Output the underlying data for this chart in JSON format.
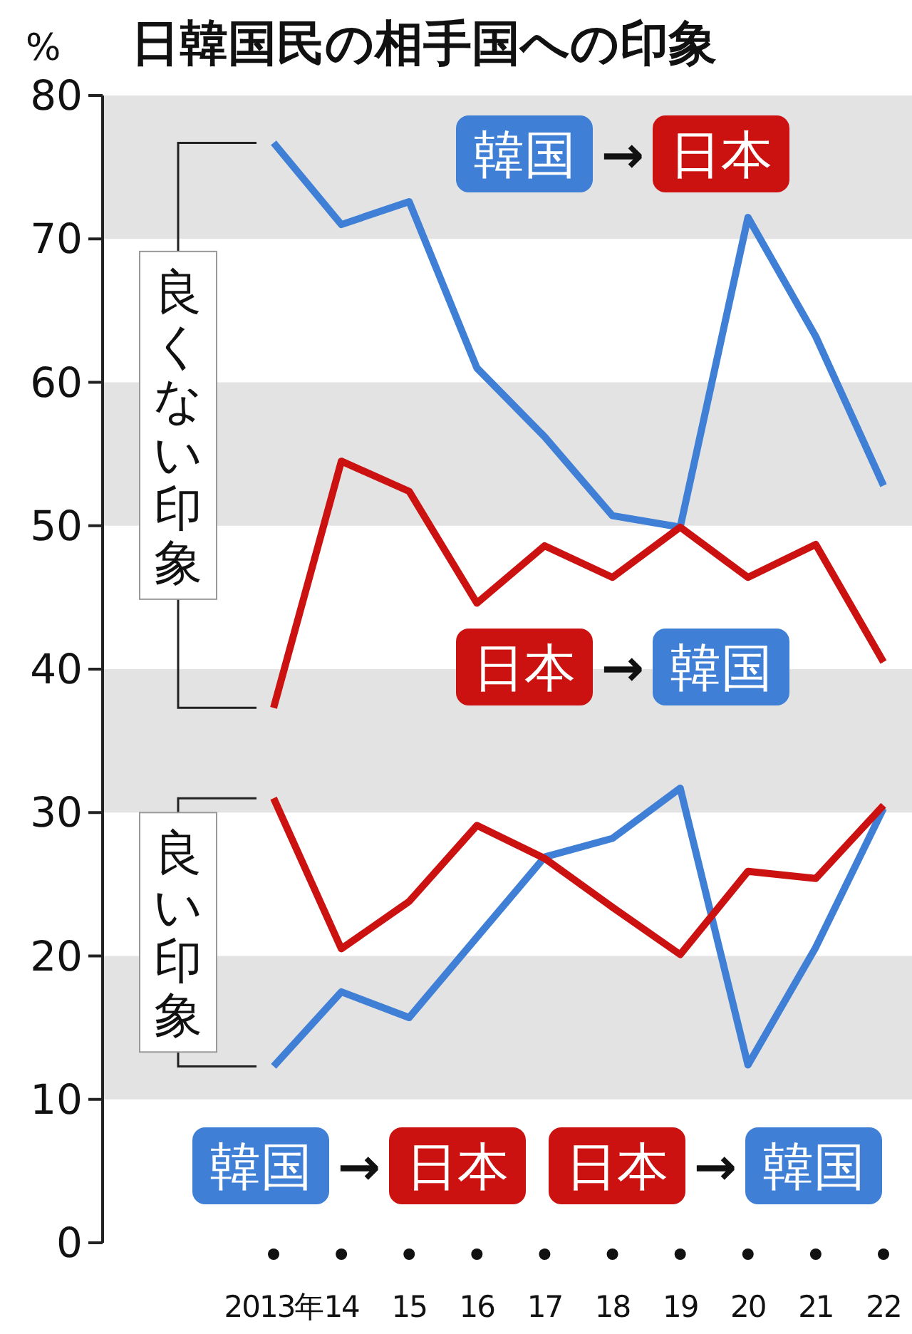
{
  "chart_data": {
    "type": "line",
    "title": "日韓国民の相手国への印象",
    "ylabel": "%",
    "categories": [
      "2013年",
      "14",
      "15",
      "16",
      "17",
      "18",
      "19",
      "20",
      "21",
      "22"
    ],
    "series": [
      {
        "name": "韓国 → 日本",
        "color": "#3f7fd6",
        "values": [
          76.7,
          71.0,
          72.6,
          61.0,
          56.2,
          50.7,
          49.9,
          71.5,
          63.2,
          52.8
        ]
      },
      {
        "name": "日本 → 韓国",
        "color": "#cc1111",
        "values": [
          37.3,
          54.5,
          52.4,
          44.6,
          48.6,
          46.4,
          49.9,
          46.4,
          48.7,
          40.5
        ]
      },
      {
        "name": "韓国 → 日本",
        "color": "#3f7fd6",
        "values": [
          12.3,
          17.5,
          15.7,
          21.3,
          26.9,
          28.2,
          31.7,
          12.4,
          20.6,
          30.3
        ]
      },
      {
        "name": "日本 → 韓国",
        "color": "#cc1111",
        "values": [
          31.0,
          20.5,
          23.8,
          29.1,
          26.8,
          23.4,
          20.1,
          25.9,
          25.4,
          30.5
        ]
      }
    ],
    "ylim": [
      0,
      80
    ],
    "yticks": [
      0,
      10,
      20,
      30,
      40,
      50,
      60,
      70,
      80
    ],
    "grid": false,
    "bands": [
      {
        "axis": "y",
        "from": 70,
        "to": 80,
        "color": "#e3e3e3"
      },
      {
        "axis": "y",
        "from": 50,
        "to": 60,
        "color": "#e3e3e3"
      },
      {
        "axis": "y",
        "from": 30,
        "to": 40,
        "color": "#e3e3e3"
      },
      {
        "axis": "y",
        "from": 10,
        "to": 20,
        "color": "#e3e3e3"
      }
    ],
    "annotations": [
      "良くない印象",
      "良い印象"
    ],
    "legend": "bottom",
    "marker": "none",
    "line_style": "solid"
  }
}
